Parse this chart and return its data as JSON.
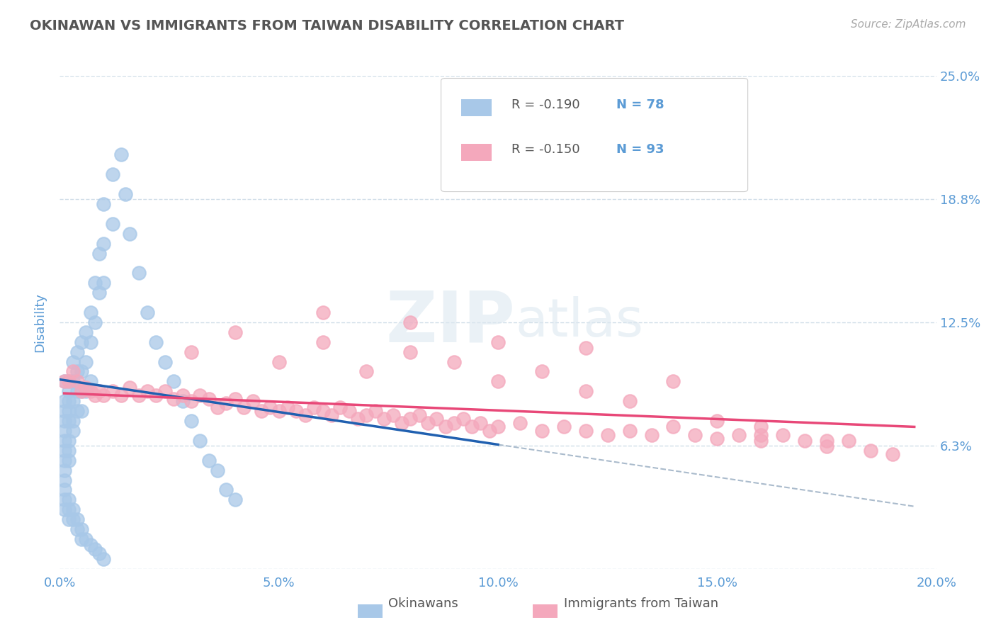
{
  "title": "OKINAWAN VS IMMIGRANTS FROM TAIWAN DISABILITY CORRELATION CHART",
  "source_text": "Source: ZipAtlas.com",
  "ylabel": "Disability",
  "xlim": [
    0.0,
    0.2
  ],
  "ylim": [
    0.0,
    0.25
  ],
  "yticks": [
    0.0,
    0.0625,
    0.125,
    0.1875,
    0.25
  ],
  "ytick_labels": [
    "",
    "6.3%",
    "12.5%",
    "18.8%",
    "25.0%"
  ],
  "xticks": [
    0.0,
    0.05,
    0.1,
    0.15,
    0.2
  ],
  "xtick_labels": [
    "0.0%",
    "5.0%",
    "10.0%",
    "15.0%",
    "20.0%"
  ],
  "okinawan_color": "#a8c8e8",
  "taiwan_color": "#f4a8bc",
  "okinawan_line_color": "#2060b0",
  "taiwan_line_color": "#e84878",
  "R_okinawan": -0.19,
  "N_okinawan": 78,
  "R_taiwan": -0.15,
  "N_taiwan": 93,
  "legend_label_1": "Okinawans",
  "legend_label_2": "Immigrants from Taiwan",
  "watermark_zip": "ZIP",
  "watermark_atlas": "atlas",
  "title_color": "#555555",
  "tick_color": "#5b9bd5",
  "grid_color": "#d0dde8",
  "background_color": "#ffffff",
  "okinawan_x": [
    0.001,
    0.001,
    0.001,
    0.001,
    0.001,
    0.001,
    0.001,
    0.001,
    0.001,
    0.001,
    0.002,
    0.002,
    0.002,
    0.002,
    0.002,
    0.002,
    0.002,
    0.002,
    0.003,
    0.003,
    0.003,
    0.003,
    0.003,
    0.004,
    0.004,
    0.004,
    0.004,
    0.005,
    0.005,
    0.005,
    0.005,
    0.006,
    0.006,
    0.006,
    0.007,
    0.007,
    0.007,
    0.008,
    0.008,
    0.009,
    0.009,
    0.01,
    0.01,
    0.01,
    0.012,
    0.012,
    0.014,
    0.015,
    0.016,
    0.018,
    0.02,
    0.022,
    0.024,
    0.026,
    0.028,
    0.03,
    0.032,
    0.034,
    0.036,
    0.038,
    0.04,
    0.001,
    0.001,
    0.001,
    0.002,
    0.002,
    0.002,
    0.003,
    0.003,
    0.004,
    0.004,
    0.005,
    0.005,
    0.006,
    0.007,
    0.008,
    0.009,
    0.01
  ],
  "okinawan_y": [
    0.095,
    0.085,
    0.08,
    0.075,
    0.07,
    0.065,
    0.06,
    0.055,
    0.05,
    0.045,
    0.095,
    0.09,
    0.085,
    0.08,
    0.075,
    0.065,
    0.06,
    0.055,
    0.105,
    0.095,
    0.085,
    0.075,
    0.07,
    0.11,
    0.1,
    0.09,
    0.08,
    0.115,
    0.1,
    0.09,
    0.08,
    0.12,
    0.105,
    0.09,
    0.13,
    0.115,
    0.095,
    0.145,
    0.125,
    0.16,
    0.14,
    0.185,
    0.165,
    0.145,
    0.2,
    0.175,
    0.21,
    0.19,
    0.17,
    0.15,
    0.13,
    0.115,
    0.105,
    0.095,
    0.085,
    0.075,
    0.065,
    0.055,
    0.05,
    0.04,
    0.035,
    0.04,
    0.035,
    0.03,
    0.035,
    0.03,
    0.025,
    0.03,
    0.025,
    0.025,
    0.02,
    0.02,
    0.015,
    0.015,
    0.012,
    0.01,
    0.008,
    0.005
  ],
  "taiwan_x": [
    0.001,
    0.002,
    0.003,
    0.004,
    0.005,
    0.006,
    0.007,
    0.008,
    0.009,
    0.01,
    0.012,
    0.014,
    0.016,
    0.018,
    0.02,
    0.022,
    0.024,
    0.026,
    0.028,
    0.03,
    0.032,
    0.034,
    0.036,
    0.038,
    0.04,
    0.042,
    0.044,
    0.046,
    0.048,
    0.05,
    0.052,
    0.054,
    0.056,
    0.058,
    0.06,
    0.062,
    0.064,
    0.066,
    0.068,
    0.07,
    0.072,
    0.074,
    0.076,
    0.078,
    0.08,
    0.082,
    0.084,
    0.086,
    0.088,
    0.09,
    0.092,
    0.094,
    0.096,
    0.098,
    0.1,
    0.105,
    0.11,
    0.115,
    0.12,
    0.125,
    0.13,
    0.135,
    0.14,
    0.145,
    0.15,
    0.155,
    0.16,
    0.165,
    0.17,
    0.175,
    0.18,
    0.185,
    0.19,
    0.03,
    0.04,
    0.05,
    0.06,
    0.07,
    0.08,
    0.09,
    0.1,
    0.11,
    0.12,
    0.13,
    0.14,
    0.15,
    0.16,
    0.175,
    0.06,
    0.08,
    0.1,
    0.12,
    0.16
  ],
  "taiwan_y": [
    0.095,
    0.095,
    0.1,
    0.095,
    0.09,
    0.092,
    0.09,
    0.088,
    0.09,
    0.088,
    0.09,
    0.088,
    0.092,
    0.088,
    0.09,
    0.088,
    0.09,
    0.086,
    0.088,
    0.085,
    0.088,
    0.086,
    0.082,
    0.084,
    0.086,
    0.082,
    0.085,
    0.08,
    0.082,
    0.08,
    0.082,
    0.08,
    0.078,
    0.082,
    0.08,
    0.078,
    0.082,
    0.08,
    0.076,
    0.078,
    0.08,
    0.076,
    0.078,
    0.074,
    0.076,
    0.078,
    0.074,
    0.076,
    0.072,
    0.074,
    0.076,
    0.072,
    0.074,
    0.07,
    0.072,
    0.074,
    0.07,
    0.072,
    0.07,
    0.068,
    0.07,
    0.068,
    0.072,
    0.068,
    0.066,
    0.068,
    0.065,
    0.068,
    0.065,
    0.062,
    0.065,
    0.06,
    0.058,
    0.11,
    0.12,
    0.105,
    0.115,
    0.1,
    0.11,
    0.105,
    0.095,
    0.1,
    0.09,
    0.085,
    0.095,
    0.075,
    0.072,
    0.065,
    0.13,
    0.125,
    0.115,
    0.112,
    0.068
  ]
}
